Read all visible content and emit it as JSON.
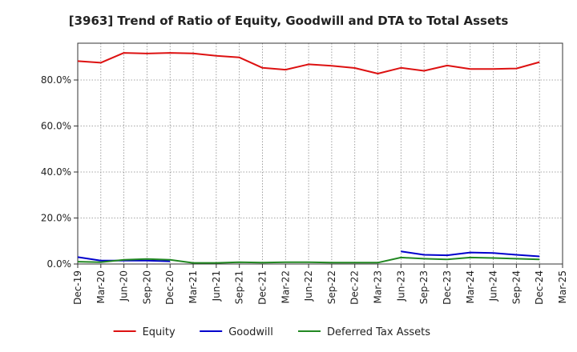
{
  "chart_data": {
    "type": "line",
    "title": "[3963]  Trend of Ratio of Equity, Goodwill and DTA to Total Assets",
    "xlabel": "",
    "ylabel": "",
    "categories": [
      "Dec-19",
      "Mar-20",
      "Jun-20",
      "Sep-20",
      "Dec-20",
      "Mar-21",
      "Jun-21",
      "Sep-21",
      "Dec-21",
      "Mar-22",
      "Jun-22",
      "Sep-22",
      "Dec-22",
      "Mar-23",
      "Jun-23",
      "Sep-23",
      "Dec-23",
      "Mar-24",
      "Jun-24",
      "Sep-24",
      "Dec-24",
      "Mar-25"
    ],
    "ylim": [
      0,
      96
    ],
    "yticks": [
      0,
      20,
      40,
      60,
      80
    ],
    "ytick_labels": [
      "0.0%",
      "20.0%",
      "40.0%",
      "60.0%",
      "80.0%"
    ],
    "grid": true,
    "legend_position": "bottom",
    "series": [
      {
        "name": "Equity",
        "color": "#dd1111",
        "values": [
          88.2,
          87.5,
          91.8,
          91.5,
          91.8,
          91.6,
          90.5,
          89.8,
          85.3,
          84.5,
          86.8,
          86.2,
          85.2,
          82.8,
          85.3,
          84.0,
          86.3,
          84.8,
          84.8,
          85.0,
          87.8,
          null
        ]
      },
      {
        "name": "Goodwill",
        "color": "#0000cc",
        "values": [
          3.0,
          1.5,
          1.5,
          1.5,
          1.2,
          null,
          null,
          null,
          null,
          null,
          null,
          null,
          null,
          null,
          5.5,
          4.0,
          3.8,
          5.0,
          4.8,
          4.0,
          3.3,
          null
        ]
      },
      {
        "name": "Deferred Tax Assets",
        "color": "#228822",
        "values": [
          1.0,
          0.8,
          1.8,
          2.2,
          1.8,
          0.5,
          0.5,
          0.8,
          0.6,
          0.8,
          0.8,
          0.6,
          0.6,
          0.6,
          2.8,
          2.3,
          2.0,
          2.8,
          2.6,
          2.3,
          2.0,
          null
        ]
      }
    ]
  }
}
